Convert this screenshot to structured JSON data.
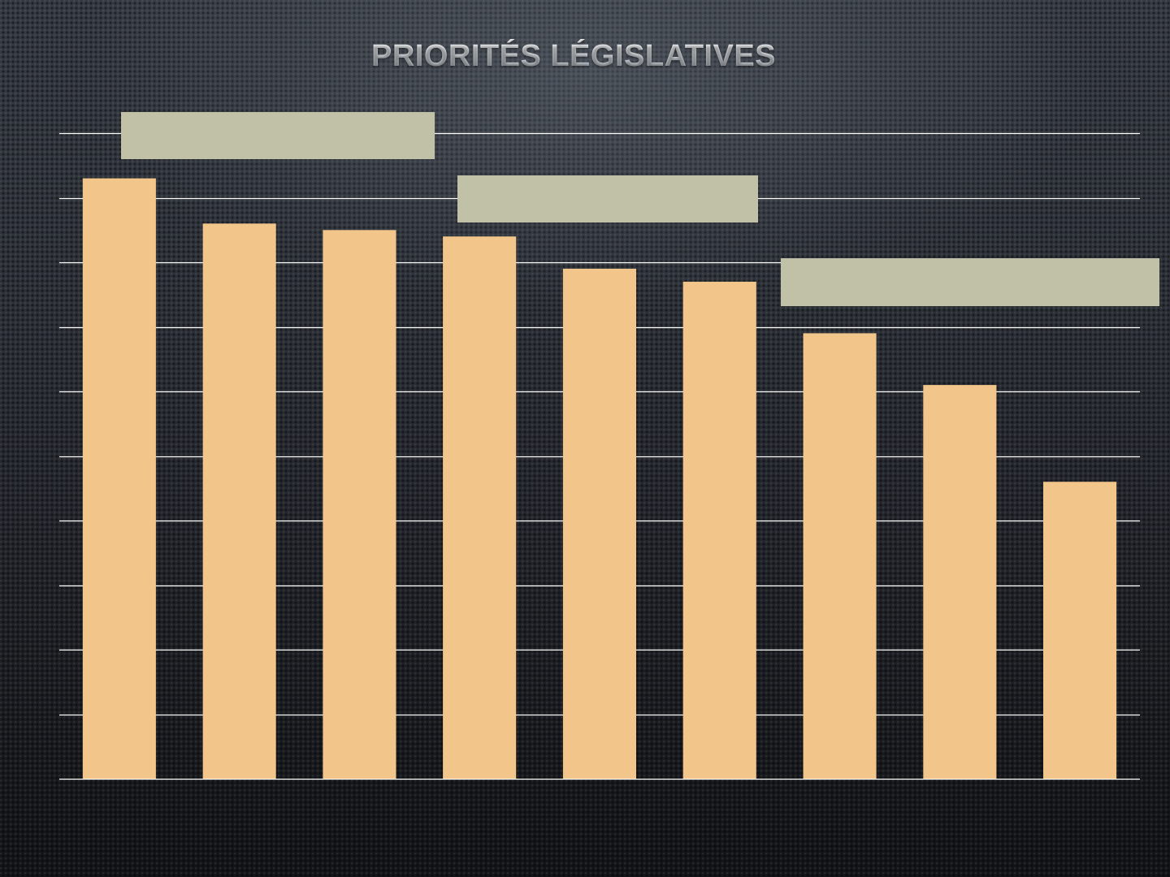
{
  "title": "PRIORITÉS LÉGISLATIVES",
  "colors": {
    "bar": "#f2c58b",
    "gridline": "#ffffff",
    "label_box": "#c1c1a7"
  },
  "chart_data": {
    "type": "bar",
    "title": "PRIORITÉS LÉGISLATIVES",
    "xlabel": "",
    "ylabel": "",
    "categories": [
      "",
      "",
      "",
      "",
      "",
      "",
      "",
      "",
      ""
    ],
    "values": [
      9.3,
      8.6,
      8.5,
      8.4,
      7.9,
      7.7,
      6.9,
      6.1,
      4.6
    ],
    "ylim": [
      0,
      10
    ],
    "gridlines": [
      0,
      1,
      2,
      3,
      4,
      5,
      6,
      7,
      8,
      9,
      10
    ],
    "grid": true,
    "legend": "none"
  }
}
